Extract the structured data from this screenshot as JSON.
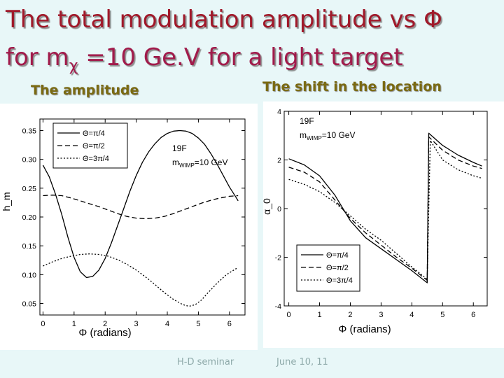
{
  "slide": {
    "title_line1": "The total modulation amplitude vs Φ",
    "title_line2_prefix": "for  m",
    "title_line2_sub": "χ",
    "title_line2_suffix": " =10 Ge.V for a light target",
    "subtitle_left": "The amplitude",
    "subtitle_right": "The shift in the location",
    "footer_left": "H-D seminar",
    "footer_right": "June 10, 11"
  },
  "chart_data": [
    {
      "type": "line",
      "title": "The amplitude",
      "xlabel": "Φ (radians)",
      "ylabel": "h_m",
      "xlim": [
        -0.1,
        6.5
      ],
      "ylim": [
        0.03,
        0.37
      ],
      "xticks": [
        0,
        1,
        2,
        3,
        4,
        5,
        6
      ],
      "yticks": [
        0.05,
        0.1,
        0.15,
        0.2,
        0.25,
        0.3,
        0.35
      ],
      "ytick_labels": [
        "0.05",
        "0.10",
        "0.15",
        "0.20",
        "0.25",
        "0.30",
        "0.35"
      ],
      "legend_position": "top-left",
      "annotation_target": "19F",
      "annotation_mass_prefix": "m",
      "annotation_mass_sub": "WIMP",
      "annotation_mass_value": "=10 GeV",
      "series": [
        {
          "name": "Θ=π/4",
          "dash": "solid",
          "points": [
            [
              0,
              0.29
            ],
            [
              0.2,
              0.27
            ],
            [
              0.4,
              0.24
            ],
            [
              0.6,
              0.205
            ],
            [
              0.8,
              0.165
            ],
            [
              1.0,
              0.13
            ],
            [
              1.2,
              0.105
            ],
            [
              1.4,
              0.095
            ],
            [
              1.6,
              0.097
            ],
            [
              1.8,
              0.108
            ],
            [
              2.0,
              0.128
            ],
            [
              2.2,
              0.155
            ],
            [
              2.4,
              0.185
            ],
            [
              2.6,
              0.215
            ],
            [
              2.8,
              0.245
            ],
            [
              3.0,
              0.272
            ],
            [
              3.2,
              0.295
            ],
            [
              3.4,
              0.313
            ],
            [
              3.6,
              0.327
            ],
            [
              3.8,
              0.338
            ],
            [
              4.0,
              0.345
            ],
            [
              4.2,
              0.349
            ],
            [
              4.4,
              0.35
            ],
            [
              4.6,
              0.349
            ],
            [
              4.8,
              0.345
            ],
            [
              5.0,
              0.337
            ],
            [
              5.2,
              0.326
            ],
            [
              5.4,
              0.31
            ],
            [
              5.6,
              0.292
            ],
            [
              5.8,
              0.272
            ],
            [
              6.0,
              0.252
            ],
            [
              6.2,
              0.235
            ],
            [
              6.28,
              0.228
            ]
          ]
        },
        {
          "name": "Θ=π/2",
          "dash": "dashed",
          "points": [
            [
              0,
              0.237
            ],
            [
              0.3,
              0.238
            ],
            [
              0.6,
              0.237
            ],
            [
              0.9,
              0.233
            ],
            [
              1.2,
              0.228
            ],
            [
              1.5,
              0.223
            ],
            [
              1.8,
              0.218
            ],
            [
              2.1,
              0.212
            ],
            [
              2.4,
              0.206
            ],
            [
              2.7,
              0.201
            ],
            [
              3.0,
              0.198
            ],
            [
              3.3,
              0.197
            ],
            [
              3.6,
              0.198
            ],
            [
              3.9,
              0.201
            ],
            [
              4.2,
              0.206
            ],
            [
              4.5,
              0.212
            ],
            [
              4.8,
              0.218
            ],
            [
              5.1,
              0.224
            ],
            [
              5.4,
              0.229
            ],
            [
              5.7,
              0.233
            ],
            [
              6.0,
              0.236
            ],
            [
              6.28,
              0.237
            ]
          ]
        },
        {
          "name": "Θ=3π/4",
          "dash": "dotted",
          "points": [
            [
              0,
              0.115
            ],
            [
              0.3,
              0.122
            ],
            [
              0.6,
              0.128
            ],
            [
              0.9,
              0.132
            ],
            [
              1.2,
              0.135
            ],
            [
              1.5,
              0.136
            ],
            [
              1.8,
              0.135
            ],
            [
              2.1,
              0.132
            ],
            [
              2.4,
              0.126
            ],
            [
              2.7,
              0.118
            ],
            [
              3.0,
              0.108
            ],
            [
              3.3,
              0.096
            ],
            [
              3.6,
              0.083
            ],
            [
              3.9,
              0.069
            ],
            [
              4.2,
              0.057
            ],
            [
              4.5,
              0.048
            ],
            [
              4.7,
              0.045
            ],
            [
              4.9,
              0.048
            ],
            [
              5.1,
              0.056
            ],
            [
              5.3,
              0.068
            ],
            [
              5.6,
              0.085
            ],
            [
              5.9,
              0.1
            ],
            [
              6.2,
              0.11
            ],
            [
              6.28,
              0.112
            ]
          ]
        }
      ]
    },
    {
      "type": "line",
      "title": "The shift in the location",
      "xlabel": "Φ (radians)",
      "ylabel": "α_0",
      "xlim": [
        -0.15,
        6.45
      ],
      "ylim": [
        -4,
        4
      ],
      "xticks": [
        0,
        1,
        2,
        3,
        4,
        5,
        6
      ],
      "yticks": [
        -4,
        -2,
        0,
        2,
        4
      ],
      "ytick_labels": [
        "-4",
        "-2",
        "0",
        "2",
        "4"
      ],
      "legend_position": "bottom-left",
      "annotation_target": "19F",
      "annotation_mass_prefix": "m",
      "annotation_mass_sub": "WIMP",
      "annotation_mass_value": "=10 GeV",
      "series": [
        {
          "name": "Θ=π/4",
          "dash": "solid",
          "points": [
            [
              0,
              2.05
            ],
            [
              0.5,
              1.8
            ],
            [
              1.0,
              1.35
            ],
            [
              1.5,
              0.55
            ],
            [
              2.0,
              -0.5
            ],
            [
              2.5,
              -1.2
            ],
            [
              3.0,
              -1.65
            ],
            [
              3.5,
              -2.1
            ],
            [
              4.0,
              -2.55
            ],
            [
              4.5,
              -3.05
            ],
            [
              4.55,
              3.1
            ],
            [
              5.0,
              2.6
            ],
            [
              5.5,
              2.2
            ],
            [
              6.0,
              1.9
            ],
            [
              6.28,
              1.75
            ]
          ]
        },
        {
          "name": "Θ=π/2",
          "dash": "dashed",
          "points": [
            [
              0,
              1.7
            ],
            [
              0.5,
              1.5
            ],
            [
              1.0,
              1.1
            ],
            [
              1.5,
              0.35
            ],
            [
              2.0,
              -0.4
            ],
            [
              2.5,
              -1.0
            ],
            [
              3.0,
              -1.5
            ],
            [
              3.5,
              -2.0
            ],
            [
              4.0,
              -2.45
            ],
            [
              4.5,
              -2.95
            ],
            [
              4.55,
              2.95
            ],
            [
              5.0,
              2.4
            ],
            [
              5.5,
              2.0
            ],
            [
              6.0,
              1.75
            ],
            [
              6.28,
              1.65
            ]
          ]
        },
        {
          "name": "Θ=3π/4",
          "dash": "dotted",
          "points": [
            [
              0,
              1.2
            ],
            [
              0.5,
              1.0
            ],
            [
              1.0,
              0.7
            ],
            [
              1.5,
              0.25
            ],
            [
              2.0,
              -0.3
            ],
            [
              2.5,
              -0.85
            ],
            [
              3.0,
              -1.3
            ],
            [
              3.5,
              -1.85
            ],
            [
              4.0,
              -2.4
            ],
            [
              4.5,
              -2.9
            ],
            [
              4.6,
              2.8
            ],
            [
              5.0,
              2.0
            ],
            [
              5.5,
              1.6
            ],
            [
              6.0,
              1.35
            ],
            [
              6.28,
              1.25
            ]
          ]
        }
      ]
    }
  ]
}
